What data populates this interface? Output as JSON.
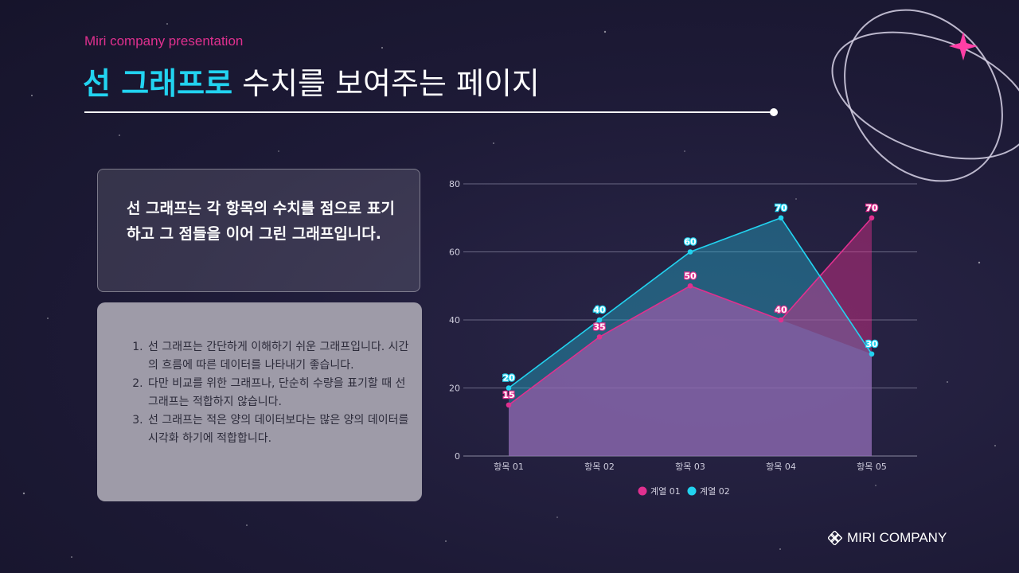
{
  "header": {
    "subtitle": "Miri company presentation",
    "title_highlight": "선 그래프로",
    "title_rest": " 수치를 보여주는 페이지"
  },
  "intro_box": {
    "text": "선 그래프는 각 항목의 수치를 점으로 표기하고 그 점들을 이어 그린 그래프입니다."
  },
  "notes": {
    "items": [
      "선 그래프는 간단하게 이해하기 쉬운 그래프입니다. 시간의 흐름에 따른 데이터를 나타내기 좋습니다.",
      "다만 비교를 위한 그래프나, 단순히 수량을 표기할 때 선 그래프는 적합하지 않습니다.",
      "선 그래프는 적은 양의 데이터보다는 많은 양의 데이터를 시각화 하기에 적합합니다."
    ]
  },
  "chart_data": {
    "type": "area",
    "categories": [
      "항목 01",
      "항목 02",
      "항목 03",
      "항목 04",
      "항목 05"
    ],
    "series": [
      {
        "name": "계열 01",
        "values": [
          15,
          35,
          50,
          40,
          70
        ],
        "color": "#e0308f"
      },
      {
        "name": "계열 02",
        "values": [
          20,
          40,
          60,
          70,
          30
        ],
        "color": "#22d3f0"
      }
    ],
    "ylim": [
      0,
      80
    ],
    "yticks": [
      0,
      20,
      40,
      60,
      80
    ],
    "grid": true,
    "legend": "bottom"
  },
  "footer": {
    "brand": "MIRI COMPANY"
  },
  "colors": {
    "accent_cyan": "#22d3f0",
    "accent_pink": "#e0308f"
  }
}
